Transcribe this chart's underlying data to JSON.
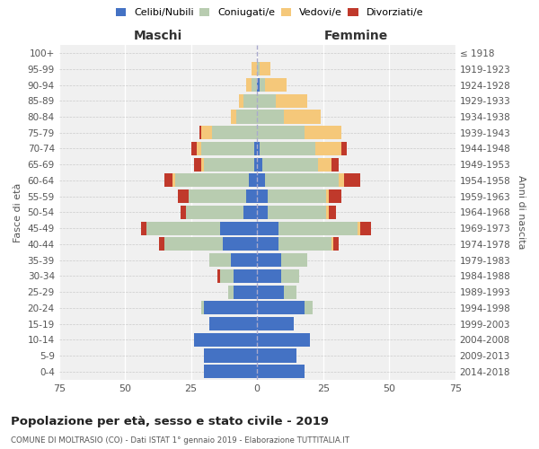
{
  "age_groups": [
    "0-4",
    "5-9",
    "10-14",
    "15-19",
    "20-24",
    "25-29",
    "30-34",
    "35-39",
    "40-44",
    "45-49",
    "50-54",
    "55-59",
    "60-64",
    "65-69",
    "70-74",
    "75-79",
    "80-84",
    "85-89",
    "90-94",
    "95-99",
    "100+"
  ],
  "birth_years": [
    "2014-2018",
    "2009-2013",
    "2004-2008",
    "1999-2003",
    "1994-1998",
    "1989-1993",
    "1984-1988",
    "1979-1983",
    "1974-1978",
    "1969-1973",
    "1964-1968",
    "1959-1963",
    "1954-1958",
    "1949-1953",
    "1944-1948",
    "1939-1943",
    "1934-1938",
    "1929-1933",
    "1924-1928",
    "1919-1923",
    "≤ 1918"
  ],
  "males": {
    "celibi": [
      20,
      20,
      24,
      18,
      20,
      9,
      9,
      10,
      13,
      14,
      5,
      4,
      3,
      1,
      1,
      0,
      0,
      0,
      0,
      0,
      0
    ],
    "coniugati": [
      0,
      0,
      0,
      0,
      1,
      2,
      5,
      8,
      22,
      28,
      22,
      22,
      28,
      19,
      20,
      17,
      8,
      5,
      2,
      0,
      0
    ],
    "vedovi": [
      0,
      0,
      0,
      0,
      0,
      0,
      0,
      0,
      0,
      0,
      0,
      0,
      1,
      1,
      2,
      4,
      2,
      2,
      2,
      2,
      0
    ],
    "divorziati": [
      0,
      0,
      0,
      0,
      0,
      0,
      1,
      0,
      2,
      2,
      2,
      4,
      3,
      3,
      2,
      1,
      0,
      0,
      0,
      0,
      0
    ]
  },
  "females": {
    "nubili": [
      18,
      15,
      20,
      14,
      18,
      10,
      9,
      9,
      8,
      8,
      4,
      4,
      3,
      2,
      1,
      0,
      0,
      0,
      1,
      0,
      0
    ],
    "coniugate": [
      0,
      0,
      0,
      0,
      3,
      5,
      7,
      10,
      20,
      30,
      22,
      22,
      28,
      21,
      21,
      18,
      10,
      7,
      2,
      1,
      0
    ],
    "vedove": [
      0,
      0,
      0,
      0,
      0,
      0,
      0,
      0,
      1,
      1,
      1,
      1,
      2,
      5,
      10,
      14,
      14,
      12,
      8,
      4,
      0
    ],
    "divorziate": [
      0,
      0,
      0,
      0,
      0,
      0,
      0,
      0,
      2,
      4,
      3,
      5,
      6,
      3,
      2,
      0,
      0,
      0,
      0,
      0,
      0
    ]
  },
  "colors": {
    "celibi_nubili": "#4472c4",
    "coniugati": "#b8ccb0",
    "vedovi": "#f5c87a",
    "divorziati": "#c0392b"
  },
  "xlim": 75,
  "title": "Popolazione per età, sesso e stato civile - 2019",
  "subtitle": "COMUNE DI MOLTRASIO (CO) - Dati ISTAT 1° gennaio 2019 - Elaborazione TUTTITALIA.IT",
  "ylabel_left": "Fasce di età",
  "ylabel_right": "Anni di nascita",
  "xlabel_left": "Maschi",
  "xlabel_right": "Femmine",
  "bg_color": "#f0f0f0",
  "bar_height": 0.85
}
